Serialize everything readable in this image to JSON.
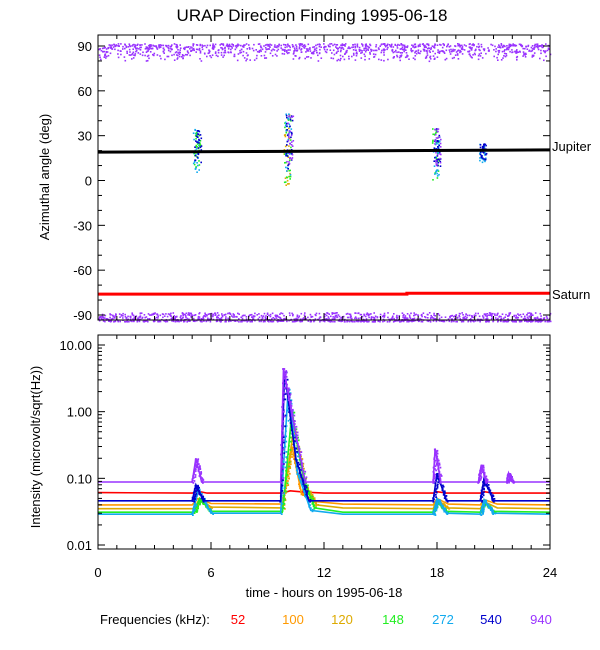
{
  "chart_data": [
    {
      "type": "scatter",
      "title": "URAP Direction Finding  1995-06-18",
      "ylabel": "Azimuthal angle (deg)",
      "ylim": [
        -95,
        95
      ],
      "xlim": [
        0,
        24
      ],
      "yticks": [
        90,
        60,
        30,
        0,
        -30,
        -60,
        -90
      ],
      "ytick_labels": [
        "90",
        "60",
        "30",
        "0",
        "-30",
        "-60",
        "-90"
      ],
      "reference_lines": [
        {
          "name": "Jupiter",
          "color": "#000000",
          "points": [
            [
              0,
              19
            ],
            [
              10,
              19.5
            ],
            [
              16,
              20
            ],
            [
              24,
              20.5
            ]
          ]
        },
        {
          "name": "Saturn",
          "color": "#ff0000",
          "points": [
            [
              0,
              -76
            ],
            [
              16.4,
              -76
            ],
            [
              16.4,
              -75.5
            ],
            [
              24,
              -75.5
            ]
          ]
        }
      ],
      "bands": [
        {
          "freq": "940",
          "y_range": [
            80,
            92
          ],
          "x_range": [
            0,
            24
          ]
        },
        {
          "freq": "940",
          "y_range": [
            -94,
            -88
          ],
          "x_range": [
            0,
            24
          ]
        }
      ],
      "bursts": [
        {
          "x": 5.2,
          "y_range": [
            5,
            35
          ],
          "freqs": [
            "272",
            "148",
            "540"
          ]
        },
        {
          "x": 10.0,
          "y_range": [
            -5,
            45
          ],
          "freqs": [
            "120",
            "148",
            "272",
            "540",
            "940"
          ]
        },
        {
          "x": 17.9,
          "y_range": [
            0,
            35
          ],
          "freqs": [
            "148",
            "272",
            "540",
            "940"
          ]
        },
        {
          "x": 20.4,
          "y_range": [
            12,
            25
          ],
          "freqs": [
            "272",
            "540"
          ]
        }
      ]
    },
    {
      "type": "line",
      "ylabel": "Intensity (microvolt/sqrt(Hz))",
      "xlabel": "time - hours on 1995-06-18",
      "yscale": "log",
      "ylim": [
        0.01,
        12
      ],
      "xlim": [
        0,
        24
      ],
      "xticks": [
        0,
        6,
        12,
        18,
        24
      ],
      "xtick_labels": [
        "0",
        "6",
        "12",
        "18",
        "24"
      ],
      "yticks": [
        10,
        1,
        0.1,
        0.01
      ],
      "ytick_labels": [
        "10.00",
        "1.00",
        "0.10",
        "0.01"
      ],
      "series": [
        {
          "freq": "52",
          "color": "#ff0000",
          "x": [
            0,
            5,
            5.3,
            5.8,
            9.8,
            10.2,
            11,
            12,
            17.8,
            18,
            18.5,
            20.3,
            20.5,
            21,
            24
          ],
          "y": [
            0.061,
            0.06,
            0.064,
            0.06,
            0.06,
            0.065,
            0.062,
            0.06,
            0.06,
            0.063,
            0.06,
            0.06,
            0.063,
            0.06,
            0.06
          ]
        },
        {
          "freq": "100",
          "color": "#ff9900",
          "x": [
            0,
            5,
            5.3,
            6,
            9.8,
            10.3,
            10.8,
            11.5,
            13,
            17.8,
            18,
            18.6,
            20.3,
            20.5,
            21.2,
            24
          ],
          "y": [
            0.04,
            0.04,
            0.05,
            0.042,
            0.041,
            0.3,
            0.06,
            0.045,
            0.041,
            0.04,
            0.05,
            0.041,
            0.04,
            0.048,
            0.041,
            0.04
          ]
        },
        {
          "freq": "120",
          "color": "#ddaa00",
          "x": [
            0,
            5.1,
            5.4,
            6,
            9.8,
            10.4,
            11,
            11.6,
            13,
            17.8,
            18,
            18.6,
            20.3,
            20.5,
            21.2,
            24
          ],
          "y": [
            0.035,
            0.035,
            0.05,
            0.037,
            0.036,
            0.6,
            0.08,
            0.04,
            0.036,
            0.035,
            0.048,
            0.036,
            0.035,
            0.045,
            0.036,
            0.035
          ]
        },
        {
          "freq": "148",
          "color": "#22ee22",
          "x": [
            0,
            5.1,
            5.4,
            6,
            9.8,
            10.3,
            10.9,
            11.5,
            13,
            17.8,
            18,
            18.5,
            20.3,
            20.5,
            21,
            24
          ],
          "y": [
            0.031,
            0.031,
            0.05,
            0.032,
            0.032,
            1.0,
            0.1,
            0.036,
            0.031,
            0.031,
            0.045,
            0.032,
            0.031,
            0.045,
            0.032,
            0.031
          ]
        },
        {
          "freq": "272",
          "color": "#11aaee",
          "x": [
            0,
            5,
            5.3,
            6,
            9.7,
            10.1,
            10.6,
            11.3,
            13,
            17.8,
            18,
            18.5,
            20.3,
            20.5,
            21,
            24
          ],
          "y": [
            0.029,
            0.029,
            0.07,
            0.03,
            0.03,
            2.2,
            0.12,
            0.033,
            0.029,
            0.029,
            0.05,
            0.03,
            0.029,
            0.048,
            0.03,
            0.029
          ]
        },
        {
          "freq": "540",
          "color": "#0000cc",
          "x": [
            0,
            5,
            5.2,
            5.6,
            9.7,
            9.9,
            10.5,
            11.2,
            12.5,
            17.8,
            18,
            18.5,
            20.3,
            20.5,
            21,
            24
          ],
          "y": [
            0.046,
            0.046,
            0.08,
            0.046,
            0.046,
            4.0,
            0.2,
            0.046,
            0.046,
            0.046,
            0.12,
            0.046,
            0.046,
            0.1,
            0.046,
            0.046
          ]
        },
        {
          "freq": "940",
          "color": "#9933ff",
          "x": [
            0,
            5,
            5.2,
            5.5,
            9.7,
            9.85,
            10.3,
            11,
            12,
            17.8,
            17.9,
            18.2,
            20.2,
            20.35,
            20.6,
            21.7,
            21.8,
            22,
            24
          ],
          "y": [
            0.088,
            0.088,
            0.2,
            0.088,
            0.088,
            4.5,
            0.9,
            0.088,
            0.088,
            0.088,
            0.28,
            0.088,
            0.088,
            0.16,
            0.088,
            0.088,
            0.12,
            0.088,
            0.088
          ]
        }
      ]
    }
  ],
  "labels": {
    "jupiter": "Jupiter",
    "saturn": "Saturn"
  },
  "legend": {
    "label": "Frequencies (kHz):",
    "items": [
      {
        "text": "52",
        "color": "#ff0000"
      },
      {
        "text": "100",
        "color": "#ff9900"
      },
      {
        "text": "120",
        "color": "#ddaa00"
      },
      {
        "text": "148",
        "color": "#22ee22"
      },
      {
        "text": "272",
        "color": "#11aaee"
      },
      {
        "text": "540",
        "color": "#0000cc"
      },
      {
        "text": "940",
        "color": "#9933ff"
      }
    ]
  }
}
